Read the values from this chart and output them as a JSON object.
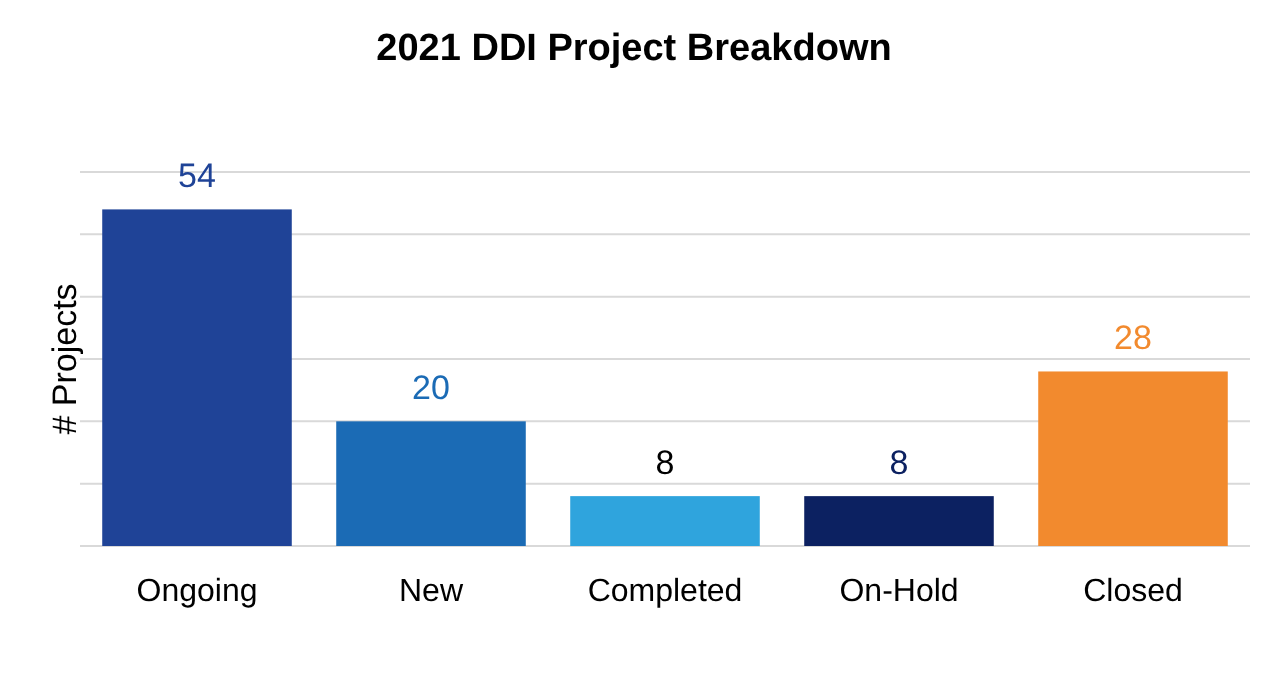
{
  "chart_data": {
    "type": "bar",
    "title": "2021 DDI Project Breakdown",
    "ylabel": "# Projects",
    "categories": [
      "Ongoing",
      "New",
      "Completed",
      "On-Hold",
      "Closed"
    ],
    "values": [
      54,
      20,
      8,
      8,
      28
    ],
    "colors": [
      "#1f4397",
      "#1b6bb5",
      "#2fa4dd",
      "#0c2161",
      "#f28a2e"
    ],
    "ylim": [
      0,
      60
    ],
    "yticks": [
      {
        "value": 0,
        "label": null
      },
      {
        "value": 10,
        "label": null
      },
      {
        "value": 20,
        "label": null
      },
      {
        "value": 30,
        "label": null
      },
      {
        "value": 40,
        "label": null
      },
      {
        "value": 50,
        "label": null
      },
      {
        "value": 60,
        "label": null
      }
    ],
    "tick_labels": "x",
    "grid": "y",
    "data_labels": true
  }
}
